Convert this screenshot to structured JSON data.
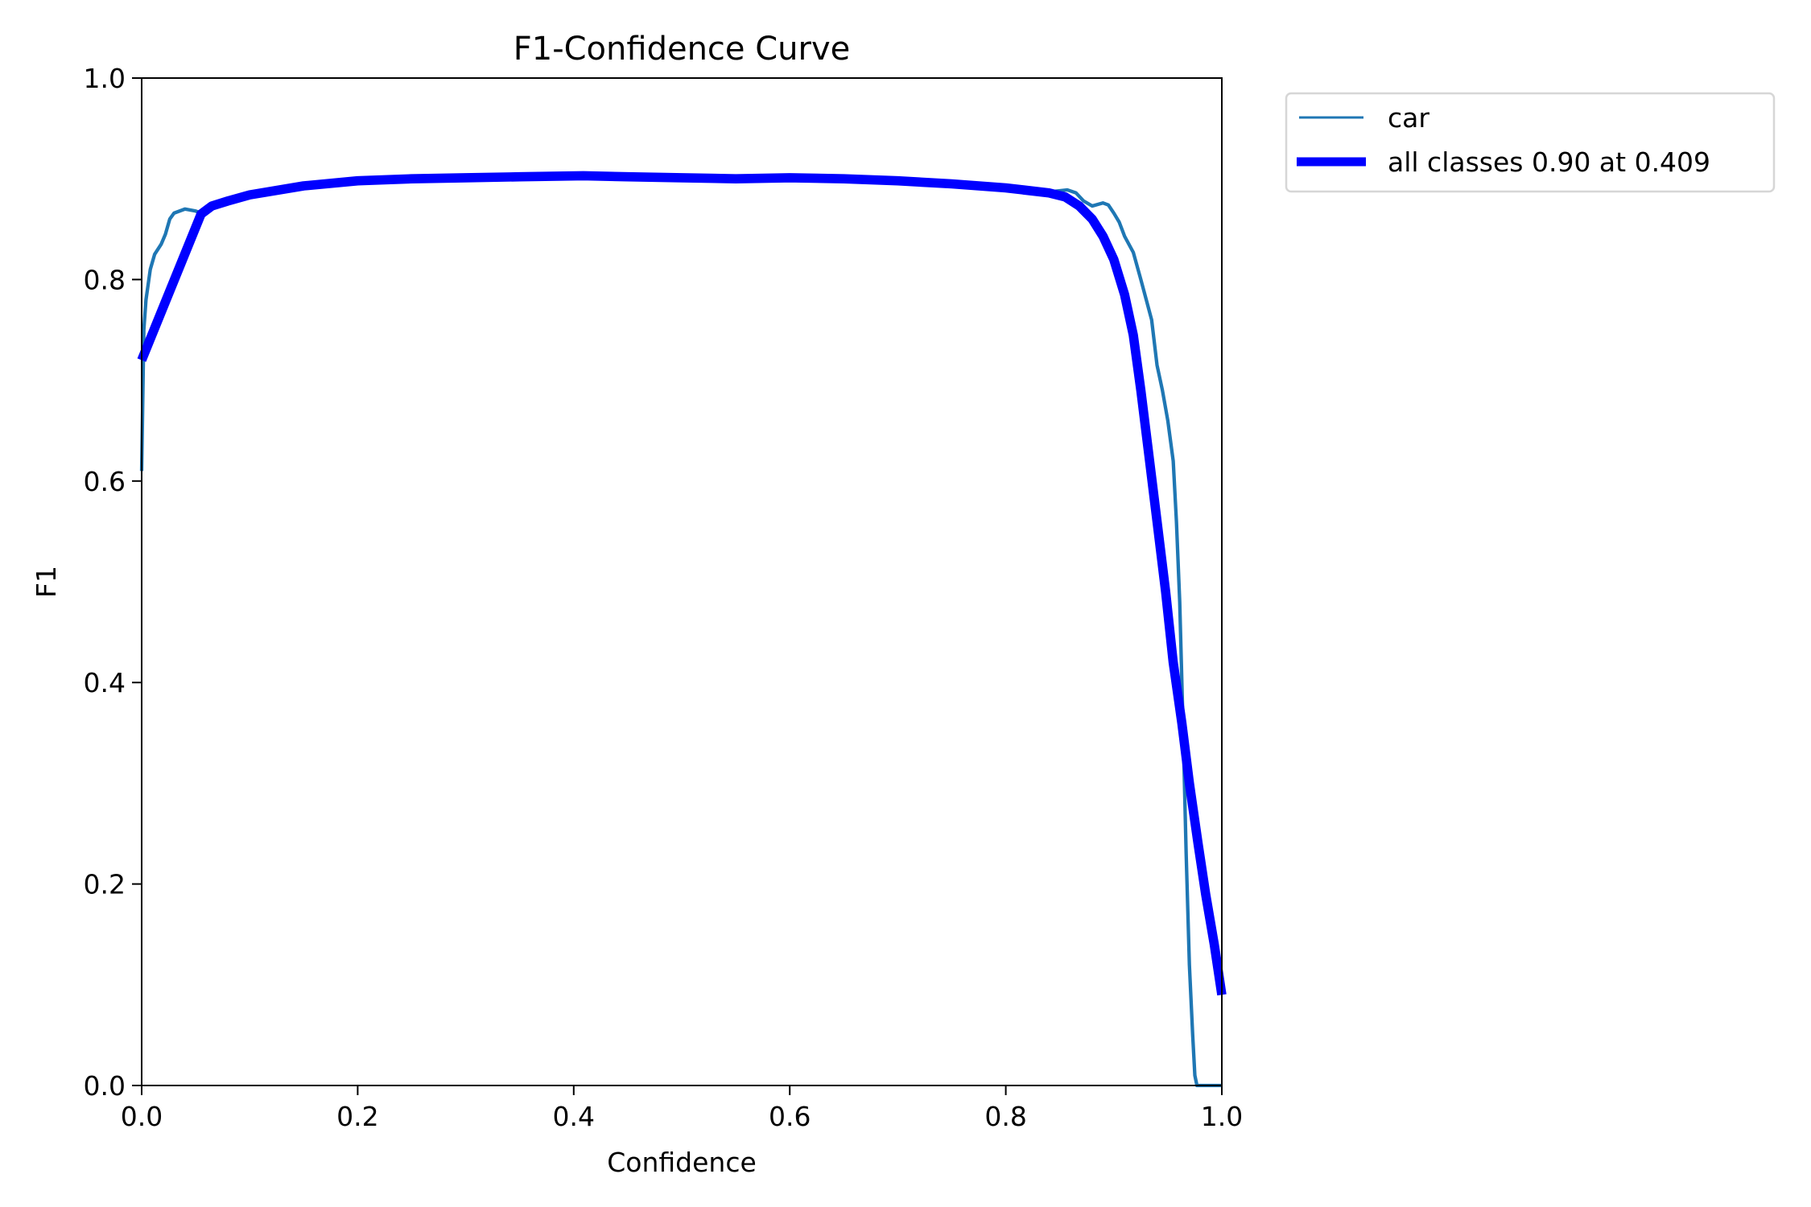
{
  "chart_data": {
    "type": "line",
    "title": "F1-Confidence Curve",
    "xlabel": "Confidence",
    "ylabel": "F1",
    "xlim": [
      0.0,
      1.0
    ],
    "ylim": [
      0.0,
      1.0
    ],
    "xticks": [
      "0.0",
      "0.2",
      "0.4",
      "0.6",
      "0.8",
      "1.0"
    ],
    "yticks": [
      "0.0",
      "0.2",
      "0.4",
      "0.6",
      "0.8",
      "1.0"
    ],
    "grid": false,
    "legend_position": "outside upper right",
    "series": [
      {
        "name": "car",
        "color": "#1f77b4",
        "line_width": 1.5,
        "x": [
          0.0,
          0.002,
          0.004,
          0.008,
          0.012,
          0.018,
          0.022,
          0.026,
          0.03,
          0.035,
          0.04,
          0.05,
          0.055,
          0.07,
          0.1,
          0.15,
          0.18,
          0.2,
          0.25,
          0.3,
          0.35,
          0.409,
          0.45,
          0.5,
          0.55,
          0.6,
          0.65,
          0.7,
          0.76,
          0.8,
          0.84,
          0.857,
          0.865,
          0.872,
          0.88,
          0.89,
          0.895,
          0.9,
          0.905,
          0.91,
          0.918,
          0.925,
          0.93,
          0.935,
          0.94,
          0.945,
          0.95,
          0.955,
          0.958,
          0.961,
          0.964,
          0.967,
          0.97,
          0.973,
          0.975,
          0.977,
          0.99,
          1.0
        ],
        "y": [
          0.61,
          0.75,
          0.78,
          0.81,
          0.825,
          0.835,
          0.845,
          0.86,
          0.866,
          0.868,
          0.87,
          0.868,
          0.866,
          0.875,
          0.885,
          0.893,
          0.898,
          0.898,
          0.9,
          0.901,
          0.902,
          0.903,
          0.902,
          0.901,
          0.9,
          0.901,
          0.9,
          0.898,
          0.895,
          0.891,
          0.887,
          0.889,
          0.886,
          0.878,
          0.873,
          0.876,
          0.874,
          0.866,
          0.857,
          0.843,
          0.827,
          0.8,
          0.78,
          0.76,
          0.715,
          0.69,
          0.66,
          0.62,
          0.56,
          0.48,
          0.36,
          0.23,
          0.12,
          0.05,
          0.01,
          0.0,
          0.0,
          0.0
        ]
      },
      {
        "name": "all classes 0.90 at 0.409",
        "color": "#0000ff",
        "line_width": 4,
        "x": [
          0.0,
          0.055,
          0.065,
          0.08,
          0.1,
          0.15,
          0.2,
          0.25,
          0.3,
          0.35,
          0.409,
          0.45,
          0.5,
          0.55,
          0.6,
          0.65,
          0.7,
          0.75,
          0.8,
          0.84,
          0.855,
          0.868,
          0.88,
          0.89,
          0.9,
          0.91,
          0.918,
          0.925,
          0.932,
          0.94,
          0.948,
          0.955,
          0.963,
          0.97,
          0.978,
          0.985,
          0.993,
          1.0
        ],
        "y": [
          0.72,
          0.865,
          0.873,
          0.878,
          0.884,
          0.893,
          0.898,
          0.9,
          0.901,
          0.902,
          0.903,
          0.902,
          0.901,
          0.9,
          0.901,
          0.9,
          0.898,
          0.895,
          0.891,
          0.886,
          0.882,
          0.873,
          0.86,
          0.843,
          0.82,
          0.785,
          0.745,
          0.69,
          0.63,
          0.56,
          0.49,
          0.42,
          0.36,
          0.3,
          0.24,
          0.19,
          0.14,
          0.09
        ]
      }
    ],
    "best": {
      "f1": 0.9,
      "confidence": 0.409
    }
  },
  "legend": {
    "items": [
      {
        "label": "car",
        "color": "#1f77b4"
      },
      {
        "label": "all classes 0.90 at 0.409",
        "color": "#0000ff"
      }
    ]
  }
}
